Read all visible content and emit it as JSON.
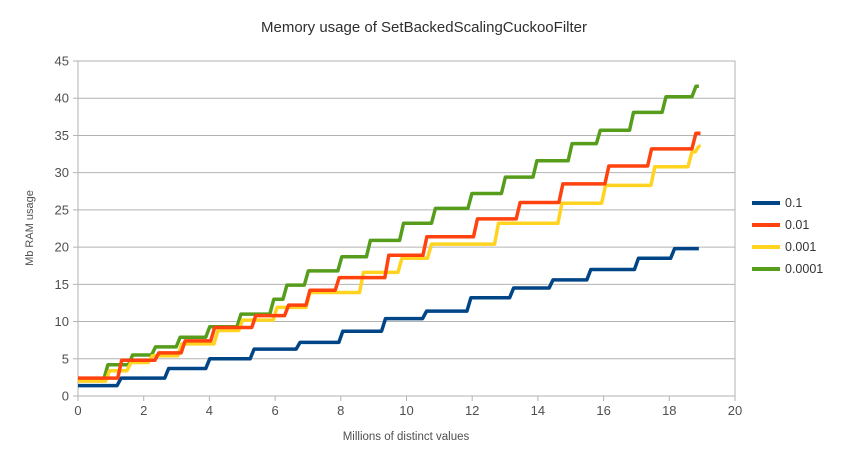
{
  "chart_data": {
    "type": "line",
    "title": "Memory usage of SetBackedScalingCuckooFilter",
    "xlabel": "Millions of distinct values",
    "ylabel": "Mb RAM usage",
    "xlim": [
      0,
      20
    ],
    "ylim": [
      0,
      45
    ],
    "x_ticks": [
      0,
      2,
      4,
      6,
      8,
      10,
      12,
      14,
      16,
      18,
      20
    ],
    "y_ticks": [
      0,
      5,
      10,
      15,
      20,
      25,
      30,
      35,
      40,
      45
    ],
    "grid": "horizontal",
    "grid_color": "#b3b3b3",
    "axis_color": "#b3b3b3",
    "legend_position": "right",
    "line_style": "step-after",
    "z_order": [
      3,
      0,
      2,
      1
    ],
    "series": [
      {
        "name": "0.1",
        "color": "#004586",
        "end_x": 18.9,
        "steps": [
          [
            0,
            1.4
          ],
          [
            1.25,
            2.4
          ],
          [
            2.7,
            3.7
          ],
          [
            3.95,
            5.0
          ],
          [
            5.3,
            6.3
          ],
          [
            6.7,
            7.2
          ],
          [
            8.0,
            8.7
          ],
          [
            9.3,
            10.4
          ],
          [
            10.55,
            11.4
          ],
          [
            11.9,
            13.2
          ],
          [
            13.2,
            14.5
          ],
          [
            14.4,
            15.6
          ],
          [
            15.55,
            17.0
          ],
          [
            17.0,
            18.5
          ],
          [
            18.1,
            19.8
          ]
        ]
      },
      {
        "name": "0.01",
        "color": "#ff420e",
        "end_x": 18.95,
        "steps": [
          [
            0,
            2.4
          ],
          [
            1.27,
            4.8
          ],
          [
            2.4,
            5.8
          ],
          [
            3.2,
            7.4
          ],
          [
            4.1,
            9.2
          ],
          [
            5.35,
            10.8
          ],
          [
            6.35,
            12.2
          ],
          [
            7.0,
            14.2
          ],
          [
            7.89,
            15.9
          ],
          [
            9.4,
            18.9
          ],
          [
            10.56,
            21.4
          ],
          [
            12.1,
            23.8
          ],
          [
            13.4,
            26.0
          ],
          [
            14.7,
            28.5
          ],
          [
            16.1,
            30.9
          ],
          [
            17.4,
            33.2
          ],
          [
            18.75,
            35.3
          ]
        ]
      },
      {
        "name": "0.001",
        "color": "#ffd320",
        "end_x": 18.9,
        "steps": [
          [
            0,
            2.0
          ],
          [
            0.9,
            3.4
          ],
          [
            1.55,
            4.5
          ],
          [
            2.2,
            5.4
          ],
          [
            3.1,
            7.0
          ],
          [
            4.2,
            8.8
          ],
          [
            4.95,
            10.2
          ],
          [
            6.0,
            11.9
          ],
          [
            7.0,
            13.9
          ],
          [
            8.63,
            16.6
          ],
          [
            9.8,
            18.5
          ],
          [
            10.7,
            20.4
          ],
          [
            12.74,
            23.2
          ],
          [
            14.67,
            25.9
          ],
          [
            16.0,
            28.3
          ],
          [
            17.5,
            30.8
          ],
          [
            18.63,
            32.8
          ],
          [
            18.85,
            33.6
          ]
        ]
      },
      {
        "name": "0.0001",
        "color": "#579d1c",
        "end_x": 18.9,
        "steps": [
          [
            0,
            2.3
          ],
          [
            0.85,
            4.2
          ],
          [
            1.6,
            5.5
          ],
          [
            2.3,
            6.6
          ],
          [
            3.05,
            7.9
          ],
          [
            3.95,
            9.3
          ],
          [
            4.9,
            11.0
          ],
          [
            5.9,
            13.0
          ],
          [
            6.3,
            14.9
          ],
          [
            6.95,
            16.8
          ],
          [
            7.97,
            18.7
          ],
          [
            8.84,
            20.9
          ],
          [
            9.85,
            23.2
          ],
          [
            10.82,
            25.2
          ],
          [
            11.93,
            27.2
          ],
          [
            12.95,
            29.4
          ],
          [
            13.91,
            31.6
          ],
          [
            14.98,
            33.9
          ],
          [
            15.84,
            35.7
          ],
          [
            16.85,
            38.1
          ],
          [
            17.84,
            40.2
          ],
          [
            18.75,
            41.6
          ]
        ]
      }
    ]
  }
}
